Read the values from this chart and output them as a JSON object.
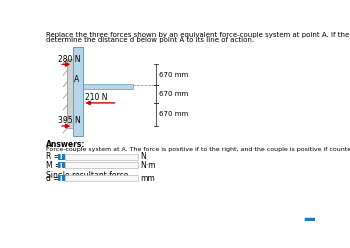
{
  "title_line1": "Replace the three forces shown by an equivalent force-couple system at point A. If the forces are replaced by a single resultant force,",
  "title_line2": "determine the distance d below point A to its line of action.",
  "answers_label": "Answers:",
  "force_couple_label": "Force-couple system at A. The force is positive if to the right, and the couple is positive if counterclockwise.",
  "R_label": "R =",
  "M_label": "M =",
  "d_label": "d =",
  "N_unit": "N",
  "Nm_unit": "N·m",
  "mm_unit": "mm",
  "single_resultant_label": "Single resultant force.",
  "force_280": "280 N",
  "force_210": "210 N",
  "force_395": "395 N",
  "dim_label": "670 mm",
  "point_A": "A",
  "bg_color": "#ffffff",
  "input_box_color": "#1a7bc4",
  "input_text_color": "#ffffff",
  "title_fontsize": 5.0,
  "label_fontsize": 5.5,
  "small_fontsize": 5.0,
  "beam_fill": "#b8d4e8",
  "beam_edge": "#6699bb",
  "wall_fill": "#d0d0d0",
  "wall_edge": "#999999",
  "bracket_fill": "#b8d4e8",
  "bracket_edge": "#6699bb",
  "arrow_color": "#cc0000",
  "dim_color": "#333333",
  "dash_color": "#888888"
}
